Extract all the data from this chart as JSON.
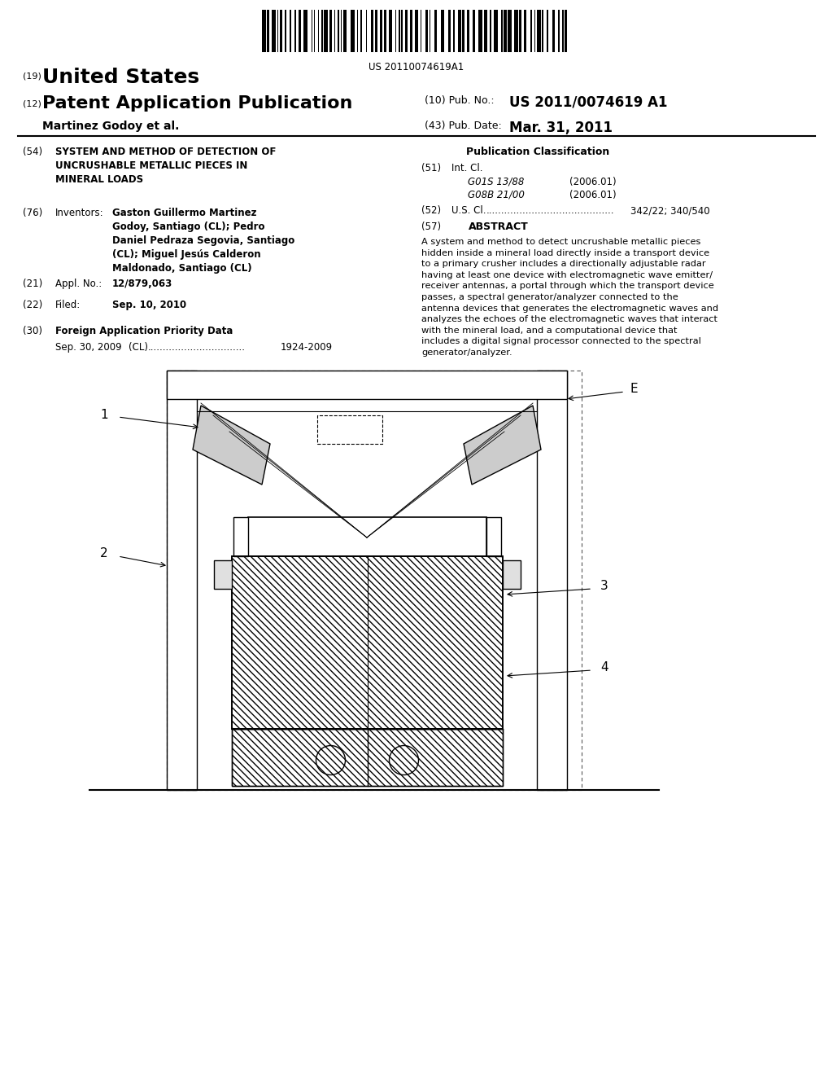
{
  "background_color": "#ffffff",
  "barcode_text": "US 20110074619A1",
  "title_19": "(19)",
  "title_country": "United States",
  "title_12": "(12)",
  "title_type": "Patent Application Publication",
  "title_10": "(10) Pub. No.:",
  "pub_no": "US 2011/0074619 A1",
  "title_43": "(43) Pub. Date:",
  "pub_date": "Mar. 31, 2011",
  "inventor_label": "Martinez Godoy et al.",
  "field_54_num": "(54)",
  "field_54_title": "SYSTEM AND METHOD OF DETECTION OF\nUNCRUSHABLE METALLIC PIECES IN\nMINERAL LOADS",
  "field_76_num": "(76)",
  "field_76_label": "Inventors:",
  "field_76_text": "Gaston Guillermo Martinez\nGodoy, Santiago (CL); Pedro\nDaniel Pedraza Segovia, Santiago\n(CL); Miguel Jesús Calderon\nMaldonado, Santiago (CL)",
  "field_21_num": "(21)",
  "field_21_label": "Appl. No.:",
  "field_21_value": "12/879,063",
  "field_22_num": "(22)",
  "field_22_label": "Filed:",
  "field_22_value": "Sep. 10, 2010",
  "field_30_num": "(30)",
  "field_30_label": "Foreign Application Priority Data",
  "field_30_date": "Sep. 30, 2009",
  "field_30_country": "(CL)",
  "field_30_dots": "................................",
  "field_30_value": "1924-2009",
  "pub_class_title": "Publication Classification",
  "field_51_num": "(51)",
  "field_51_label": "Int. Cl.",
  "field_51_class1": "G01S 13/88",
  "field_51_year1": "(2006.01)",
  "field_51_class2": "G08B 21/00",
  "field_51_year2": "(2006.01)",
  "field_52_num": "(52)",
  "field_52_label": "U.S. Cl.",
  "field_52_dots": "..........................................",
  "field_52_value": "342/22; 340/540",
  "field_57_num": "(57)",
  "field_57_label": "ABSTRACT",
  "abstract_text": "A system and method to detect uncrushable metallic pieces\nhidden inside a mineral load directly inside a transport device\nto a primary crusher includes a directionally adjustable radar\nhaving at least one device with electromagnetic wave emitter/\nreceiver antennas, a portal through which the transport device\npasses, a spectral generator/analyzer connected to the\nantenna devices that generates the electromagnetic waves and\nanalyzes the echoes of the electromagnetic waves that interact\nwith the mineral load, and a computational device that\nincludes a digital signal processor connected to the spectral\ngenerator/analyzer.",
  "diagram_label_1": "1",
  "diagram_label_2": "2",
  "diagram_label_3": "3",
  "diagram_label_4": "4",
  "diagram_label_E": "E"
}
